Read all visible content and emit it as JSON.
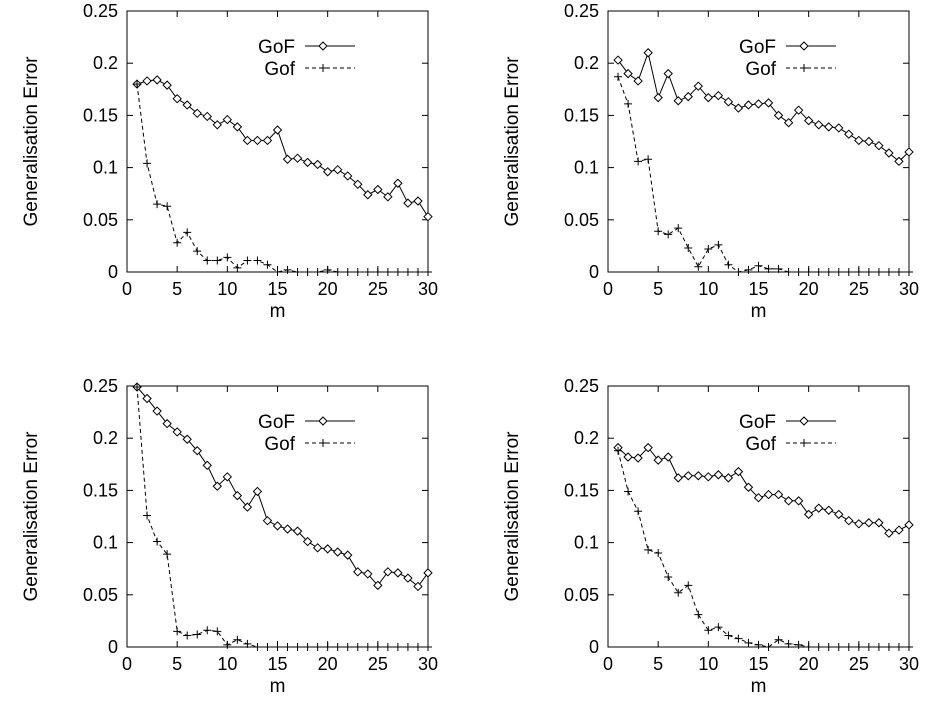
{
  "chart_data": [
    {
      "type": "line",
      "xlabel": "m",
      "ylabel": "Generalisation Error",
      "xlim": [
        0,
        30
      ],
      "ylim": [
        0,
        0.25
      ],
      "xticks": [
        0,
        5,
        10,
        15,
        20,
        25,
        30
      ],
      "yticks": [
        0,
        0.05,
        0.1,
        0.15,
        0.2,
        0.25
      ],
      "grid": false,
      "legend": "top-right",
      "x": [
        1,
        2,
        3,
        4,
        5,
        6,
        7,
        8,
        9,
        10,
        11,
        12,
        13,
        14,
        15,
        16,
        17,
        18,
        19,
        20,
        21,
        22,
        23,
        24,
        25,
        26,
        27,
        28,
        29,
        30
      ],
      "series": [
        {
          "name": "GoF",
          "marker": "diamond",
          "line": "solid",
          "values": [
            0.18,
            0.183,
            0.184,
            0.179,
            0.166,
            0.16,
            0.152,
            0.149,
            0.141,
            0.146,
            0.139,
            0.126,
            0.126,
            0.126,
            0.136,
            0.108,
            0.109,
            0.105,
            0.103,
            0.096,
            0.098,
            0.092,
            0.084,
            0.074,
            0.079,
            0.072,
            0.085,
            0.066,
            0.068,
            0.053
          ]
        },
        {
          "name": "Gof",
          "marker": "plus",
          "line": "dashed",
          "values": [
            0.18,
            0.104,
            0.065,
            0.063,
            0.028,
            0.038,
            0.02,
            0.011,
            0.011,
            0.014,
            0.004,
            0.011,
            0.011,
            0.007,
            0,
            0.002,
            0,
            0,
            0,
            0.002,
            0,
            0,
            0,
            0,
            0,
            0,
            0,
            0,
            0,
            0
          ]
        }
      ]
    },
    {
      "type": "line",
      "xlabel": "m",
      "ylabel": "Generalisation Error",
      "xlim": [
        0,
        30
      ],
      "ylim": [
        0,
        0.25
      ],
      "xticks": [
        0,
        5,
        10,
        15,
        20,
        25,
        30
      ],
      "yticks": [
        0,
        0.05,
        0.1,
        0.15,
        0.2,
        0.25
      ],
      "grid": false,
      "legend": "top-right",
      "x": [
        1,
        2,
        3,
        4,
        5,
        6,
        7,
        8,
        9,
        10,
        11,
        12,
        13,
        14,
        15,
        16,
        17,
        18,
        19,
        20,
        21,
        22,
        23,
        24,
        25,
        26,
        27,
        28,
        29,
        30
      ],
      "series": [
        {
          "name": "GoF",
          "marker": "diamond",
          "line": "solid",
          "values": [
            0.203,
            0.19,
            0.183,
            0.21,
            0.167,
            0.19,
            0.164,
            0.168,
            0.178,
            0.167,
            0.169,
            0.163,
            0.157,
            0.16,
            0.161,
            0.162,
            0.15,
            0.143,
            0.155,
            0.145,
            0.141,
            0.139,
            0.138,
            0.132,
            0.126,
            0.125,
            0.121,
            0.114,
            0.106,
            0.115
          ]
        },
        {
          "name": "Gof",
          "marker": "plus",
          "line": "dashed",
          "values": [
            0.187,
            0.161,
            0.106,
            0.108,
            0.039,
            0.036,
            0.042,
            0.023,
            0.005,
            0.022,
            0.026,
            0.007,
            0,
            0.002,
            0.006,
            0.003,
            0.003,
            0,
            0,
            0,
            0,
            0,
            0,
            0,
            0,
            0,
            0,
            0,
            0,
            0
          ]
        }
      ]
    },
    {
      "type": "line",
      "xlabel": "m",
      "ylabel": "Generalisation Error",
      "xlim": [
        0,
        30
      ],
      "ylim": [
        0,
        0.25
      ],
      "xticks": [
        0,
        5,
        10,
        15,
        20,
        25,
        30
      ],
      "yticks": [
        0,
        0.05,
        0.1,
        0.15,
        0.2,
        0.25
      ],
      "grid": false,
      "legend": "top-right",
      "x": [
        1,
        2,
        3,
        4,
        5,
        6,
        7,
        8,
        9,
        10,
        11,
        12,
        13,
        14,
        15,
        16,
        17,
        18,
        19,
        20,
        21,
        22,
        23,
        24,
        25,
        26,
        27,
        28,
        29,
        30
      ],
      "series": [
        {
          "name": "GoF",
          "marker": "diamond",
          "line": "solid",
          "values": [
            0.249,
            0.238,
            0.226,
            0.214,
            0.206,
            0.199,
            0.188,
            0.174,
            0.154,
            0.163,
            0.145,
            0.134,
            0.149,
            0.121,
            0.116,
            0.113,
            0.111,
            0.101,
            0.095,
            0.094,
            0.091,
            0.088,
            0.072,
            0.07,
            0.059,
            0.072,
            0.071,
            0.066,
            0.058,
            0.071
          ]
        },
        {
          "name": "Gof",
          "marker": "plus",
          "line": "dashed",
          "values": [
            0.249,
            0.126,
            0.101,
            0.089,
            0.015,
            0.011,
            0.012,
            0.016,
            0.015,
            0.002,
            0.007,
            0.003,
            0,
            0,
            0,
            0,
            0,
            0,
            0,
            0,
            0,
            0,
            0,
            0,
            0,
            0,
            0,
            0,
            0,
            0
          ]
        }
      ]
    },
    {
      "type": "line",
      "xlabel": "m",
      "ylabel": "Generalisation Error",
      "xlim": [
        0,
        30
      ],
      "ylim": [
        0,
        0.25
      ],
      "xticks": [
        0,
        5,
        10,
        15,
        20,
        25,
        30
      ],
      "yticks": [
        0,
        0.05,
        0.1,
        0.15,
        0.2,
        0.25
      ],
      "grid": false,
      "legend": "top-right",
      "x": [
        1,
        2,
        3,
        4,
        5,
        6,
        7,
        8,
        9,
        10,
        11,
        12,
        13,
        14,
        15,
        16,
        17,
        18,
        19,
        20,
        21,
        22,
        23,
        24,
        25,
        26,
        27,
        28,
        29,
        30
      ],
      "series": [
        {
          "name": "GoF",
          "marker": "diamond",
          "line": "solid",
          "values": [
            0.191,
            0.182,
            0.181,
            0.191,
            0.179,
            0.182,
            0.162,
            0.164,
            0.164,
            0.163,
            0.165,
            0.162,
            0.168,
            0.153,
            0.143,
            0.146,
            0.146,
            0.14,
            0.14,
            0.127,
            0.133,
            0.131,
            0.127,
            0.121,
            0.118,
            0.119,
            0.119,
            0.109,
            0.112,
            0.117
          ]
        },
        {
          "name": "Gof",
          "marker": "plus",
          "line": "dashed",
          "values": [
            0.188,
            0.149,
            0.13,
            0.093,
            0.09,
            0.067,
            0.052,
            0.059,
            0.031,
            0.016,
            0.019,
            0.011,
            0.008,
            0.004,
            0.002,
            0,
            0.007,
            0.003,
            0.002,
            0,
            0,
            0,
            0,
            0,
            0,
            0,
            0,
            0,
            0,
            0
          ]
        }
      ]
    }
  ]
}
